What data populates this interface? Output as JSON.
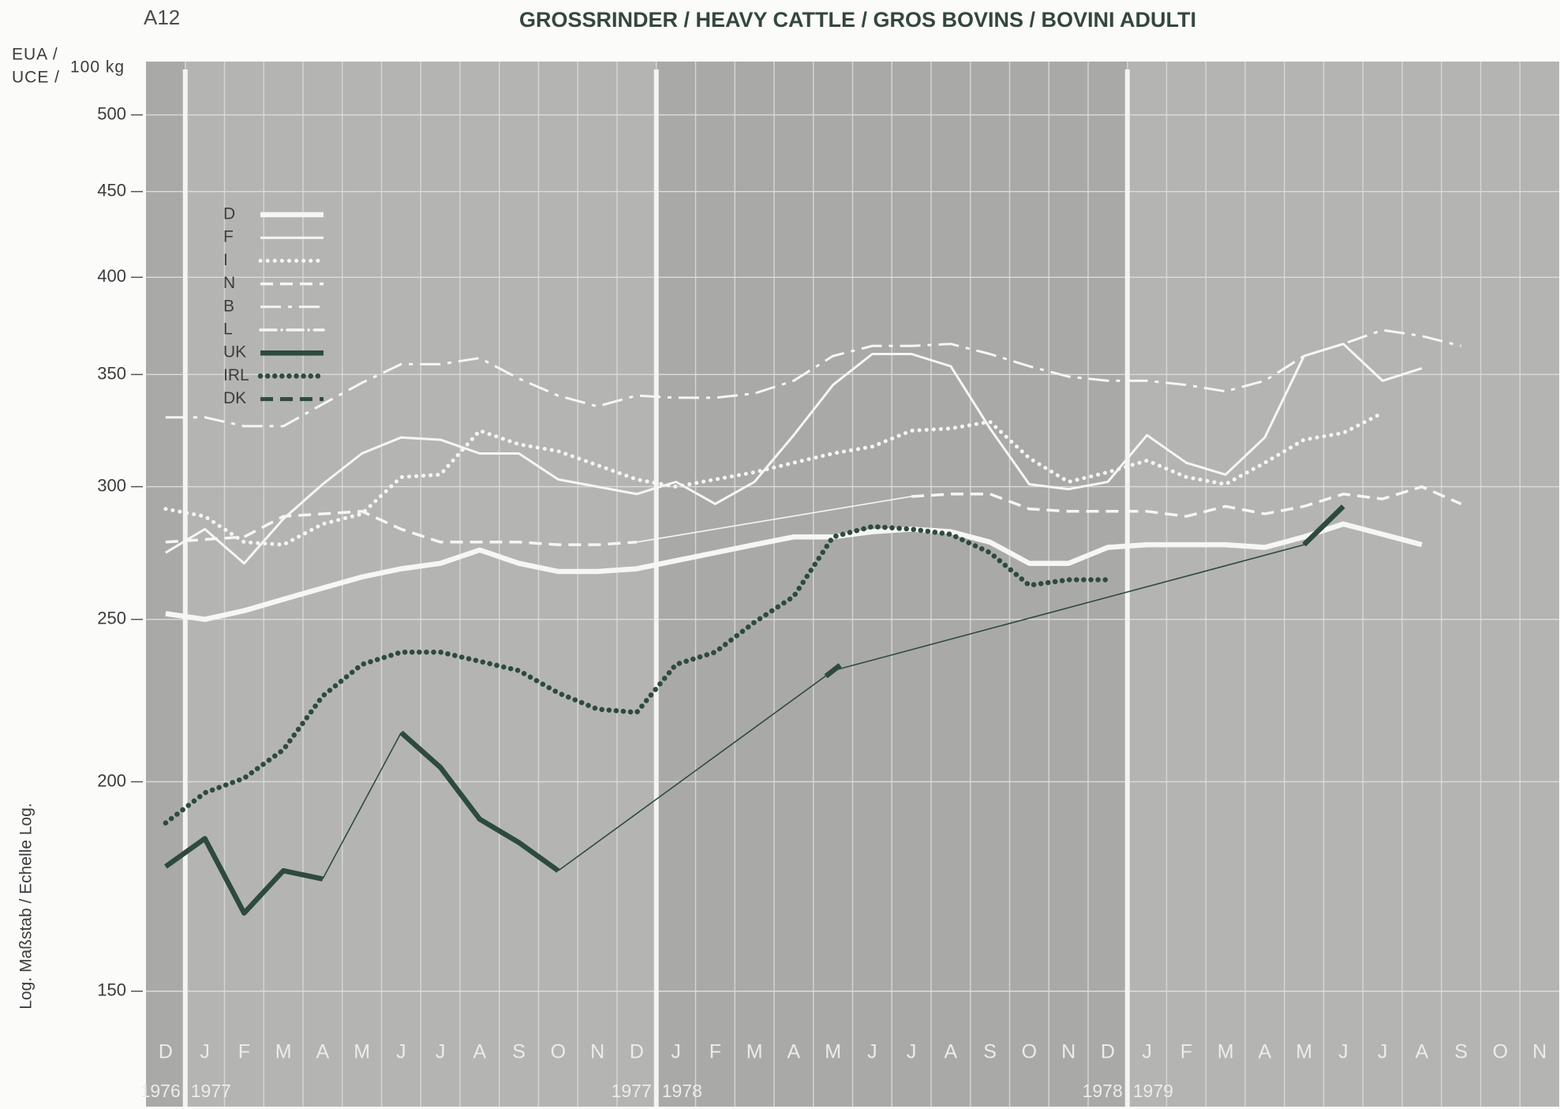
{
  "chart_data": {
    "type": "line",
    "corner_label": "A12",
    "title": "GROSSRINDER / HEAVY CATTLE / GROS BOVINS / BOVINI ADULTI",
    "y_unit": [
      "EUA /",
      "UCE /"
    ],
    "y_unit_suffix": "100 kg",
    "y_axis_label": "Log. Maßstab / Echelle Log.",
    "categories": [
      "D",
      "J",
      "F",
      "M",
      "A",
      "M",
      "J",
      "J",
      "A",
      "S",
      "O",
      "N",
      "D",
      "J",
      "F",
      "M",
      "A",
      "M",
      "J",
      "J",
      "A",
      "S",
      "O",
      "N",
      "D",
      "J",
      "F",
      "M",
      "A",
      "M",
      "J",
      "J",
      "A",
      "S",
      "O",
      "N"
    ],
    "years": [
      {
        "label": "1976",
        "from": 0,
        "to": 0
      },
      {
        "label": "1977",
        "from": 1,
        "to": 12
      },
      {
        "label": "1978",
        "from": 13,
        "to": 24
      },
      {
        "label": "1979",
        "from": 25,
        "to": 35
      }
    ],
    "ylim": [
      128,
      538
    ],
    "log_y": true,
    "yticks": [
      150,
      200,
      250,
      300,
      350,
      400,
      450,
      500
    ],
    "grid": true,
    "legend": "upper left",
    "series": [
      {
        "name": "D",
        "color": "#f6f6f4",
        "style": "solid-heavy",
        "values": [
          252,
          250,
          253,
          257,
          261,
          265,
          268,
          270,
          275,
          270,
          267,
          267,
          268,
          271,
          274,
          277,
          280,
          280,
          282,
          283,
          282,
          278,
          270,
          270,
          276,
          277,
          277,
          277,
          276,
          280,
          285,
          281,
          277,
          null,
          null,
          null
        ]
      },
      {
        "name": "F",
        "color": "#f6f6f4",
        "style": "solid",
        "values": [
          274,
          283,
          270,
          287,
          301,
          314,
          321,
          320,
          314,
          314,
          303,
          300,
          297,
          302,
          293,
          302,
          322,
          345,
          360,
          360,
          354,
          325,
          301,
          299,
          302,
          322,
          310,
          305,
          321,
          359,
          365,
          347,
          353,
          null,
          null,
          null
        ]
      },
      {
        "name": "I",
        "color": "#f6f6f4",
        "style": "dotted",
        "values": [
          291,
          288,
          278,
          277,
          285,
          289,
          304,
          305,
          324,
          318,
          315,
          309,
          303,
          300,
          303,
          306,
          310,
          314,
          317,
          324,
          325,
          328,
          312,
          302,
          306,
          311,
          304,
          301,
          310,
          320,
          323,
          332,
          null,
          null,
          null,
          null
        ]
      },
      {
        "name": "N",
        "color": "#f6f6f4",
        "style": "dashed",
        "bridge_gaps": true,
        "values": [
          278,
          279,
          280,
          288,
          289,
          290,
          283,
          278,
          278,
          278,
          277,
          277,
          278,
          null,
          null,
          null,
          null,
          null,
          null,
          296,
          297,
          297,
          291,
          290,
          290,
          290,
          288,
          292,
          289,
          292,
          297,
          295,
          300,
          293,
          null,
          null
        ]
      },
      {
        "name": "B",
        "color": "#f6f6f4",
        "style": "dashdot",
        "values": [
          330,
          330,
          326,
          326,
          336,
          346,
          355,
          355,
          358,
          348,
          340,
          335,
          340,
          339,
          339,
          341,
          347,
          359,
          364,
          364,
          365,
          360,
          354,
          349,
          347,
          347,
          345,
          342,
          347,
          359,
          365,
          372,
          369,
          364,
          null,
          null
        ]
      },
      {
        "name": "L",
        "color": "#f6f6f4",
        "style": "dotdash",
        "values": [
          null,
          null,
          null,
          null,
          null,
          null,
          null,
          null,
          null,
          null,
          null,
          null,
          null,
          null,
          null,
          null,
          null,
          null,
          null,
          null,
          null,
          null,
          null,
          null,
          null,
          null,
          null,
          null,
          null,
          null,
          null,
          null,
          null,
          null,
          null,
          null
        ]
      },
      {
        "name": "UK",
        "color": "#2e4a40",
        "style": "solid-heavy",
        "bridge_gaps": true,
        "values": [
          178,
          185,
          167,
          177,
          175,
          null,
          214,
          204,
          190,
          184,
          177,
          null,
          null,
          null,
          null,
          null,
          null,
          233,
          null,
          null,
          null,
          null,
          null,
          null,
          null,
          null,
          null,
          null,
          null,
          277,
          292,
          null,
          null,
          null,
          null,
          null
        ]
      },
      {
        "name": "IRL",
        "color": "#2e4a40",
        "style": "dotted-heavy",
        "values": [
          189,
          197,
          201,
          209,
          225,
          235,
          239,
          239,
          236,
          233,
          226,
          221,
          220,
          235,
          239,
          249,
          258,
          280,
          284,
          283,
          281,
          274,
          262,
          264,
          264,
          null,
          null,
          null,
          null,
          null,
          null,
          null,
          null,
          null,
          null,
          null
        ]
      },
      {
        "name": "DK",
        "color": "#2e4a40",
        "style": "dashed-heavy",
        "values": [
          null,
          null,
          null,
          null,
          null,
          null,
          null,
          null,
          null,
          null,
          null,
          null,
          null,
          null,
          null,
          null,
          null,
          null,
          null,
          null,
          null,
          null,
          null,
          null,
          null,
          null,
          null,
          null,
          null,
          null,
          null,
          null,
          null,
          null,
          null,
          null
        ]
      }
    ]
  }
}
